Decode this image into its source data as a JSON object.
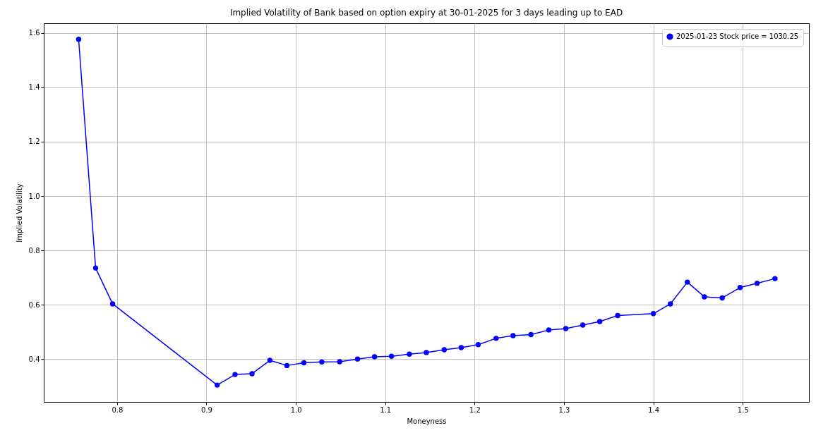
{
  "chart_data": {
    "type": "line",
    "title": "Implied Volatility of Bank based on option expiry at 30-01-2025 for 3 days leading up to EAD",
    "xlabel": "Moneyness",
    "ylabel": "Implied Volatility",
    "x": [
      0.757,
      0.776,
      0.795,
      0.912,
      0.932,
      0.951,
      0.971,
      0.99,
      1.009,
      1.029,
      1.049,
      1.069,
      1.088,
      1.107,
      1.127,
      1.146,
      1.166,
      1.185,
      1.204,
      1.224,
      1.243,
      1.263,
      1.283,
      1.302,
      1.321,
      1.34,
      1.36,
      1.4,
      1.419,
      1.438,
      1.457,
      1.477,
      1.497,
      1.516,
      1.536
    ],
    "series": [
      {
        "name": "2025-01-23 Stock price = 1030.25",
        "color": "#0000ff",
        "values": [
          1.577,
          0.735,
          0.603,
          0.304,
          0.343,
          0.346,
          0.395,
          0.376,
          0.386,
          0.389,
          0.39,
          0.4,
          0.408,
          0.41,
          0.418,
          0.424,
          0.434,
          0.442,
          0.453,
          0.476,
          0.486,
          0.49,
          0.507,
          0.512,
          0.525,
          0.538,
          0.56,
          0.567,
          0.603,
          0.683,
          0.629,
          0.625,
          0.663,
          0.679,
          0.696
        ]
      }
    ],
    "xlim": [
      0.718,
      1.574
    ],
    "ylim": [
      0.242,
      1.636
    ],
    "xticks": [
      0.8,
      0.9,
      {
        "value": 1,
        "label": "1.0"
      },
      1.1,
      1.2,
      1.3,
      1.4,
      1.5
    ],
    "yticks": [
      0.4,
      0.6,
      0.8,
      {
        "value": 1,
        "label": "1.0"
      },
      1.2,
      1.4,
      1.6
    ],
    "grid": true,
    "legend": "top right",
    "marker": "circle",
    "line_style": "solid"
  }
}
